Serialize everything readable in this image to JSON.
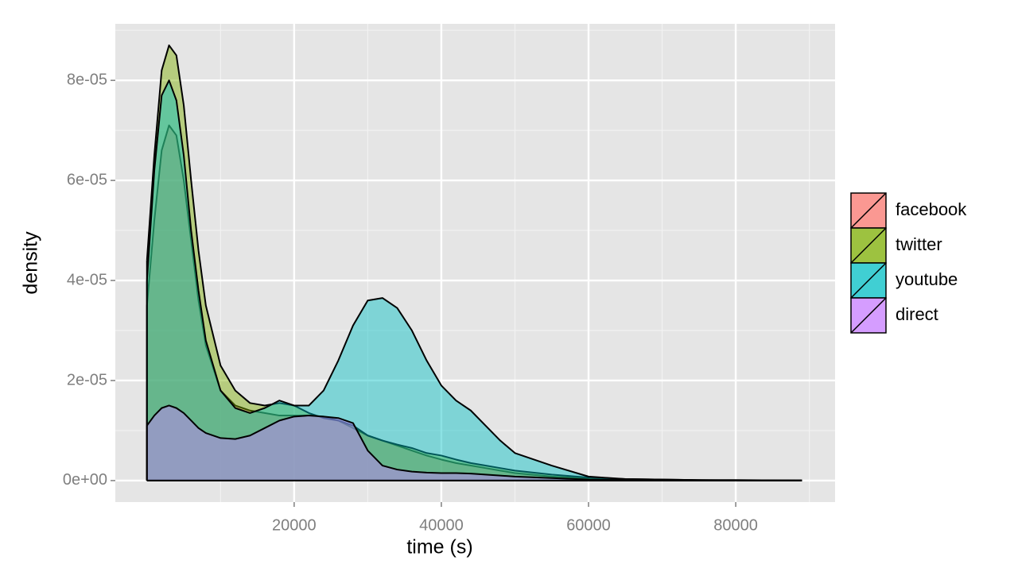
{
  "chart_data": {
    "type": "density",
    "x_label": "time (s)",
    "y_label": "density",
    "x": [
      0,
      1000,
      2000,
      3000,
      4000,
      5000,
      6000,
      7000,
      8000,
      10000,
      12000,
      14000,
      16000,
      18000,
      20000,
      22000,
      24000,
      26000,
      28000,
      30000,
      32000,
      34000,
      36000,
      38000,
      40000,
      42000,
      44000,
      46000,
      48000,
      50000,
      55000,
      60000,
      65000,
      70000,
      75000,
      80000,
      89000
    ],
    "series": [
      {
        "name": "facebook",
        "color": "#F8766D",
        "values": [
          3.5e-05,
          5.2e-05,
          6.6e-05,
          7.1e-05,
          6.9e-05,
          6e-05,
          4.8e-05,
          3.6e-05,
          2.7e-05,
          1.8e-05,
          1.5e-05,
          1.4e-05,
          1.35e-05,
          1.3e-05,
          1.3e-05,
          1.3e-05,
          1.28e-05,
          1.2e-05,
          1.05e-05,
          9e-06,
          8e-06,
          7e-06,
          6e-06,
          5e-06,
          4.2e-06,
          3.5e-06,
          3e-06,
          2.5e-06,
          2e-06,
          1.5e-06,
          8e-07,
          4e-07,
          2e-07,
          1e-07,
          5e-08,
          0,
          0
        ]
      },
      {
        "name": "twitter",
        "color": "#7CAE00",
        "values": [
          4.4e-05,
          6.5e-05,
          8.2e-05,
          8.7e-05,
          8.5e-05,
          7.5e-05,
          6e-05,
          4.6e-05,
          3.5e-05,
          2.3e-05,
          1.8e-05,
          1.55e-05,
          1.5e-05,
          1.55e-05,
          1.5e-05,
          1.35e-05,
          1.25e-05,
          1.2e-05,
          1.1e-05,
          9e-06,
          8e-06,
          7.2e-06,
          6.5e-06,
          5.5e-06,
          5e-06,
          4.2e-06,
          3.5e-06,
          3e-06,
          2.5e-06,
          2e-06,
          1.2e-06,
          6e-07,
          3e-07,
          2e-07,
          1e-07,
          1e-07,
          0
        ]
      },
      {
        "name": "youtube",
        "color": "#00BFC4",
        "values": [
          4e-05,
          6.2e-05,
          7.7e-05,
          8e-05,
          7.6e-05,
          6.5e-05,
          5e-05,
          3.8e-05,
          2.8e-05,
          1.8e-05,
          1.45e-05,
          1.35e-05,
          1.45e-05,
          1.6e-05,
          1.5e-05,
          1.5e-05,
          1.8e-05,
          2.4e-05,
          3.1e-05,
          3.6e-05,
          3.65e-05,
          3.45e-05,
          3e-05,
          2.4e-05,
          1.9e-05,
          1.6e-05,
          1.4e-05,
          1.1e-05,
          8e-06,
          5.5e-06,
          3e-06,
          8e-07,
          3e-07,
          2e-07,
          1e-07,
          5e-08,
          0
        ]
      },
      {
        "name": "direct",
        "color": "#C77CFF",
        "values": [
          1.1e-05,
          1.3e-05,
          1.45e-05,
          1.5e-05,
          1.45e-05,
          1.35e-05,
          1.2e-05,
          1.05e-05,
          9.5e-06,
          8.5e-06,
          8.3e-06,
          9e-06,
          1.05e-05,
          1.2e-05,
          1.28e-05,
          1.3e-05,
          1.28e-05,
          1.25e-05,
          1.15e-05,
          6e-06,
          3e-06,
          2.2e-06,
          1.8e-06,
          1.6e-06,
          1.5e-06,
          1.5e-06,
          1.4e-06,
          1.2e-06,
          1e-06,
          8e-07,
          5e-07,
          2e-07,
          1e-07,
          5e-08,
          0,
          0,
          0
        ]
      }
    ],
    "xlim": [
      -4300,
      93500
    ],
    "ylim": [
      -4.3e-06,
      9.13e-05
    ],
    "xticks": [
      20000,
      40000,
      60000,
      80000
    ],
    "yticks": [
      {
        "value": 0,
        "label": "0e+00"
      },
      {
        "value": 2e-05,
        "label": "2e-05"
      },
      {
        "value": 4e-05,
        "label": "4e-05"
      },
      {
        "value": 6e-05,
        "label": "6e-05"
      },
      {
        "value": 8e-05,
        "label": "8e-05"
      }
    ],
    "grid": true,
    "minor_grid": true,
    "legend": "right"
  }
}
